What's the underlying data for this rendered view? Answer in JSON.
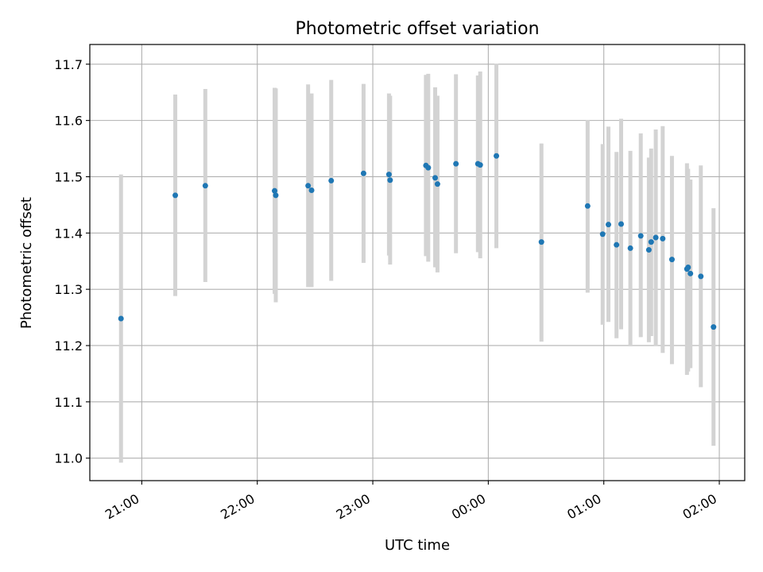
{
  "chart_data": {
    "type": "scatter",
    "title": "Photometric offset variation",
    "xlabel": "UTC time",
    "ylabel": "Photometric offset",
    "x_unit": "UTC hour (after 20:00 the values exceed 24 for times past midnight)",
    "xlim": [
      20.55,
      26.22
    ],
    "ylim": [
      10.96,
      11.735
    ],
    "grid": true,
    "x_ticks": [
      {
        "value": 21,
        "label": "21:00"
      },
      {
        "value": 22,
        "label": "22:00"
      },
      {
        "value": 23,
        "label": "23:00"
      },
      {
        "value": 24,
        "label": "00:00"
      },
      {
        "value": 25,
        "label": "01:00"
      },
      {
        "value": 26,
        "label": "02:00"
      }
    ],
    "y_ticks": [
      {
        "value": 11.0,
        "label": "11.0"
      },
      {
        "value": 11.1,
        "label": "11.1"
      },
      {
        "value": 11.2,
        "label": "11.2"
      },
      {
        "value": 11.3,
        "label": "11.3"
      },
      {
        "value": 11.4,
        "label": "11.4"
      },
      {
        "value": 11.5,
        "label": "11.5"
      },
      {
        "value": 11.6,
        "label": "11.6"
      },
      {
        "value": 11.7,
        "label": "11.7"
      }
    ],
    "colors": {
      "point": "#1f77b4",
      "errorbar": "#d3d3d3",
      "grid": "#b0b0b0"
    },
    "points": [
      {
        "x": 20.82,
        "y": 11.248,
        "ylo": 10.992,
        "yhi": 11.504
      },
      {
        "x": 21.29,
        "y": 11.467,
        "ylo": 11.288,
        "yhi": 11.646
      },
      {
        "x": 21.55,
        "y": 11.484,
        "ylo": 11.313,
        "yhi": 11.656
      },
      {
        "x": 22.15,
        "y": 11.475,
        "ylo": 11.292,
        "yhi": 11.658
      },
      {
        "x": 22.16,
        "y": 11.467,
        "ylo": 11.277,
        "yhi": 11.657
      },
      {
        "x": 22.44,
        "y": 11.484,
        "ylo": 11.304,
        "yhi": 11.664
      },
      {
        "x": 22.47,
        "y": 11.476,
        "ylo": 11.304,
        "yhi": 11.648
      },
      {
        "x": 22.64,
        "y": 11.493,
        "ylo": 11.315,
        "yhi": 11.672
      },
      {
        "x": 22.92,
        "y": 11.506,
        "ylo": 11.347,
        "yhi": 11.665
      },
      {
        "x": 23.14,
        "y": 11.504,
        "ylo": 11.36,
        "yhi": 11.648
      },
      {
        "x": 23.15,
        "y": 11.494,
        "ylo": 11.344,
        "yhi": 11.644
      },
      {
        "x": 23.46,
        "y": 11.52,
        "ylo": 11.359,
        "yhi": 11.681
      },
      {
        "x": 23.48,
        "y": 11.516,
        "ylo": 11.349,
        "yhi": 11.683
      },
      {
        "x": 23.54,
        "y": 11.498,
        "ylo": 11.339,
        "yhi": 11.659
      },
      {
        "x": 23.56,
        "y": 11.487,
        "ylo": 11.33,
        "yhi": 11.644
      },
      {
        "x": 23.72,
        "y": 11.523,
        "ylo": 11.364,
        "yhi": 11.682
      },
      {
        "x": 23.91,
        "y": 11.523,
        "ylo": 11.366,
        "yhi": 11.68
      },
      {
        "x": 23.93,
        "y": 11.521,
        "ylo": 11.355,
        "yhi": 11.687
      },
      {
        "x": 24.07,
        "y": 11.537,
        "ylo": 11.373,
        "yhi": 11.701
      },
      {
        "x": 24.46,
        "y": 11.384,
        "ylo": 11.207,
        "yhi": 11.559
      },
      {
        "x": 24.86,
        "y": 11.448,
        "ylo": 11.294,
        "yhi": 11.601
      },
      {
        "x": 24.99,
        "y": 11.398,
        "ylo": 11.237,
        "yhi": 11.558
      },
      {
        "x": 25.04,
        "y": 11.415,
        "ylo": 11.242,
        "yhi": 11.589
      },
      {
        "x": 25.11,
        "y": 11.379,
        "ylo": 11.213,
        "yhi": 11.544
      },
      {
        "x": 25.15,
        "y": 11.416,
        "ylo": 11.229,
        "yhi": 11.603
      },
      {
        "x": 25.23,
        "y": 11.373,
        "ylo": 11.2,
        "yhi": 11.546
      },
      {
        "x": 25.32,
        "y": 11.395,
        "ylo": 11.215,
        "yhi": 11.577
      },
      {
        "x": 25.39,
        "y": 11.37,
        "ylo": 11.206,
        "yhi": 11.534
      },
      {
        "x": 25.41,
        "y": 11.384,
        "ylo": 11.217,
        "yhi": 11.55
      },
      {
        "x": 25.45,
        "y": 11.392,
        "ylo": 11.199,
        "yhi": 11.584
      },
      {
        "x": 25.51,
        "y": 11.39,
        "ylo": 11.187,
        "yhi": 11.59
      },
      {
        "x": 25.59,
        "y": 11.353,
        "ylo": 11.167,
        "yhi": 11.537
      },
      {
        "x": 25.72,
        "y": 11.336,
        "ylo": 11.148,
        "yhi": 11.524
      },
      {
        "x": 25.73,
        "y": 11.339,
        "ylo": 11.154,
        "yhi": 11.514
      },
      {
        "x": 25.75,
        "y": 11.328,
        "ylo": 11.16,
        "yhi": 11.495
      },
      {
        "x": 25.84,
        "y": 11.323,
        "ylo": 11.126,
        "yhi": 11.52
      },
      {
        "x": 25.95,
        "y": 11.233,
        "ylo": 11.022,
        "yhi": 11.444
      }
    ]
  }
}
